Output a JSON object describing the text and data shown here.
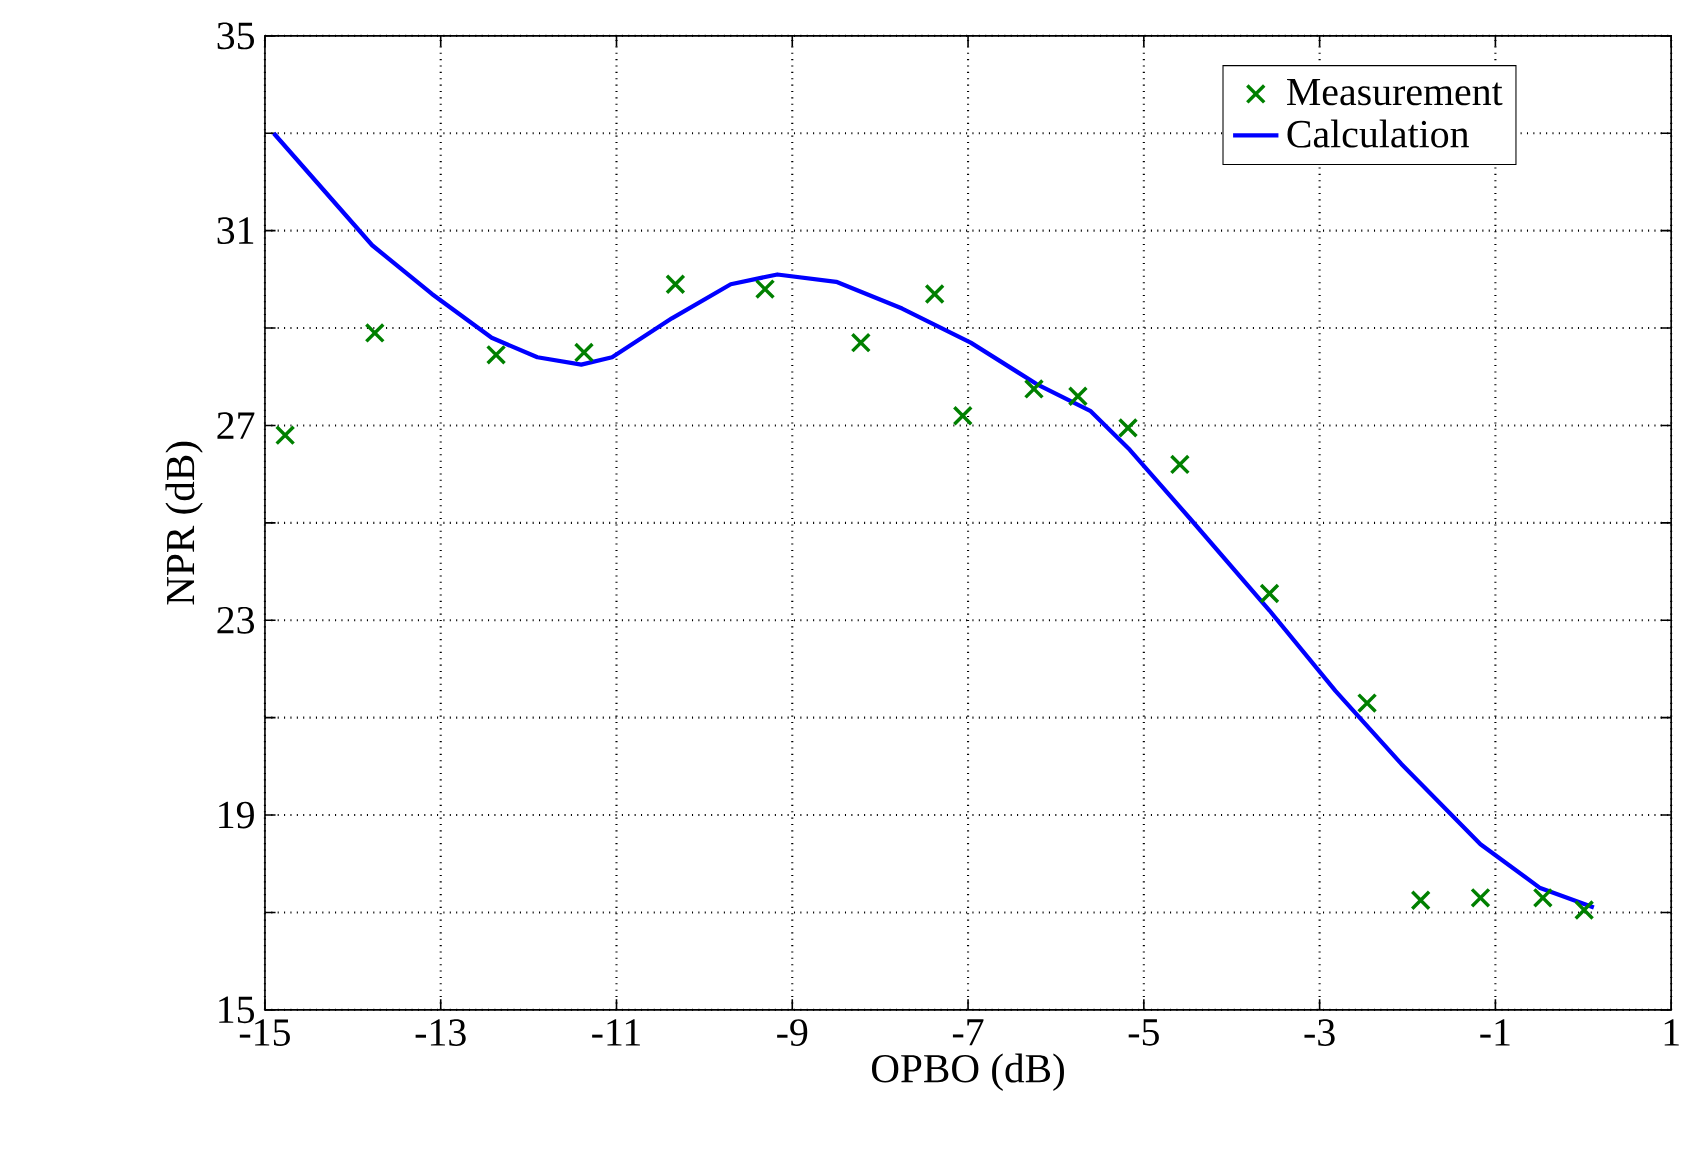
{
  "chart_data": {
    "type": "scatter",
    "xlabel": "OPBO (dB)",
    "ylabel": "NPR (dB)",
    "xlim": [
      -15,
      1
    ],
    "ylim": [
      15,
      35
    ],
    "xticks": [
      -15,
      -13,
      -11,
      -9,
      -7,
      -5,
      -3,
      -1,
      1
    ],
    "yticks": [
      15,
      {
        "value": 17,
        "label": null
      },
      19,
      {
        "value": 21,
        "label": null
      },
      23,
      {
        "value": 25,
        "label": null
      },
      27,
      {
        "value": 29,
        "label": null
      },
      31,
      {
        "value": 33,
        "label": null
      },
      35
    ],
    "grid": true,
    "legend": "top right",
    "series": [
      {
        "name": "Measurement",
        "marker": "cross",
        "color": "#008000",
        "x": [
          -14.77,
          -13.75,
          -12.37,
          -11.37,
          -10.33,
          -9.31,
          -8.22,
          -7.38,
          -7.06,
          -6.25,
          -5.75,
          -5.18,
          -4.59,
          -3.57,
          -2.46,
          -1.85,
          -1.17,
          -0.46,
          0.01
        ],
        "values": [
          26.8,
          28.9,
          28.45,
          28.5,
          29.9,
          29.8,
          28.7,
          29.7,
          27.2,
          27.75,
          27.6,
          26.95,
          26.2,
          23.55,
          21.3,
          17.25,
          17.3,
          17.3,
          17.05
        ]
      },
      {
        "name": "Calculation",
        "type": "line",
        "marker": "none",
        "line_style": "solid",
        "color": "#0000ff",
        "x": [
          -14.9,
          -13.78,
          -13.1,
          -12.42,
          -11.9,
          -11.4,
          -11.05,
          -10.37,
          -9.7,
          -9.17,
          -8.5,
          -7.75,
          -6.97,
          -6.22,
          -5.61,
          -5.16,
          -4.48,
          -3.57,
          -2.82,
          -2.07,
          -1.17,
          -0.49,
          0.12
        ],
        "values": [
          33.0,
          30.7,
          29.7,
          28.8,
          28.4,
          28.25,
          28.4,
          29.2,
          29.9,
          30.1,
          29.95,
          29.4,
          28.7,
          27.85,
          27.3,
          26.5,
          25.1,
          23.2,
          21.55,
          20.05,
          18.4,
          17.5,
          17.1
        ]
      }
    ]
  }
}
